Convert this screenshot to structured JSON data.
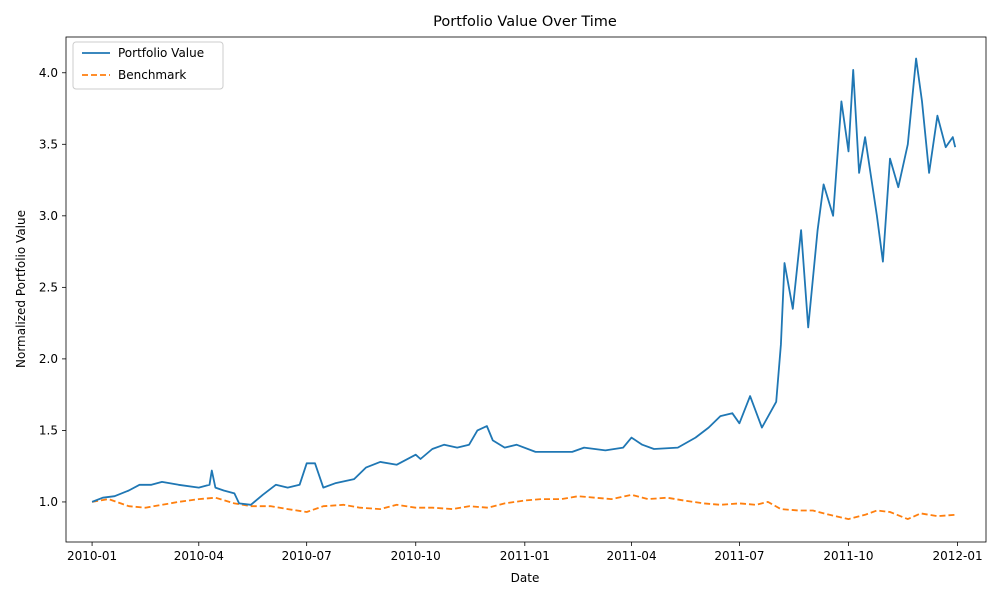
{
  "chart_data": {
    "type": "line",
    "title": "Portfolio Value Over Time",
    "xlabel": "Date",
    "ylabel": "Normalized Portfolio Value",
    "xlim": [
      "2009-12-10",
      "2012-01-25"
    ],
    "ylim": [
      0.72,
      4.25
    ],
    "x_ticks": [
      "2010-01-01",
      "2010-04-01",
      "2010-07-01",
      "2010-10-01",
      "2011-01-01",
      "2011-04-01",
      "2011-07-01",
      "2011-10-01",
      "2012-01-01"
    ],
    "x_tick_labels": [
      "2010-01",
      "2010-04",
      "2010-07",
      "2010-10",
      "2011-01",
      "2011-04",
      "2011-07",
      "2011-10",
      "2012-01"
    ],
    "y_ticks": [
      1.0,
      1.5,
      2.0,
      2.5,
      3.0,
      3.5,
      4.0
    ],
    "y_tick_labels": [
      "1.0",
      "1.5",
      "2.0",
      "2.5",
      "3.0",
      "3.5",
      "4.0"
    ],
    "grid": false,
    "legend": "upper left",
    "series": [
      {
        "name": "Portfolio Value",
        "color": "#1f77b4",
        "style": "solid",
        "points": [
          [
            "2010-01-01",
            1.0
          ],
          [
            "2010-01-10",
            1.03
          ],
          [
            "2010-01-20",
            1.04
          ],
          [
            "2010-02-01",
            1.08
          ],
          [
            "2010-02-10",
            1.12
          ],
          [
            "2010-02-20",
            1.12
          ],
          [
            "2010-03-01",
            1.14
          ],
          [
            "2010-03-15",
            1.12
          ],
          [
            "2010-04-01",
            1.1
          ],
          [
            "2010-04-10",
            1.12
          ],
          [
            "2010-04-12",
            1.22
          ],
          [
            "2010-04-15",
            1.1
          ],
          [
            "2010-04-22",
            1.08
          ],
          [
            "2010-05-01",
            1.06
          ],
          [
            "2010-05-05",
            0.99
          ],
          [
            "2010-05-15",
            0.98
          ],
          [
            "2010-05-25",
            1.05
          ],
          [
            "2010-06-05",
            1.12
          ],
          [
            "2010-06-15",
            1.1
          ],
          [
            "2010-06-25",
            1.12
          ],
          [
            "2010-07-01",
            1.27
          ],
          [
            "2010-07-08",
            1.27
          ],
          [
            "2010-07-15",
            1.1
          ],
          [
            "2010-07-25",
            1.13
          ],
          [
            "2010-08-10",
            1.16
          ],
          [
            "2010-08-20",
            1.24
          ],
          [
            "2010-09-01",
            1.28
          ],
          [
            "2010-09-15",
            1.26
          ],
          [
            "2010-10-01",
            1.33
          ],
          [
            "2010-10-05",
            1.3
          ],
          [
            "2010-10-15",
            1.37
          ],
          [
            "2010-10-25",
            1.4
          ],
          [
            "2010-11-05",
            1.38
          ],
          [
            "2010-11-15",
            1.4
          ],
          [
            "2010-11-22",
            1.5
          ],
          [
            "2010-11-30",
            1.53
          ],
          [
            "2010-12-05",
            1.43
          ],
          [
            "2010-12-15",
            1.38
          ],
          [
            "2010-12-25",
            1.4
          ],
          [
            "2011-01-10",
            1.35
          ],
          [
            "2011-01-25",
            1.35
          ],
          [
            "2011-02-10",
            1.35
          ],
          [
            "2011-02-20",
            1.38
          ],
          [
            "2011-03-10",
            1.36
          ],
          [
            "2011-03-25",
            1.38
          ],
          [
            "2011-04-01",
            1.45
          ],
          [
            "2011-04-10",
            1.4
          ],
          [
            "2011-04-20",
            1.37
          ],
          [
            "2011-05-10",
            1.38
          ],
          [
            "2011-05-25",
            1.45
          ],
          [
            "2011-06-05",
            1.52
          ],
          [
            "2011-06-15",
            1.6
          ],
          [
            "2011-06-25",
            1.62
          ],
          [
            "2011-07-01",
            1.55
          ],
          [
            "2011-07-10",
            1.74
          ],
          [
            "2011-07-20",
            1.52
          ],
          [
            "2011-08-01",
            1.7
          ],
          [
            "2011-08-05",
            2.1
          ],
          [
            "2011-08-08",
            2.67
          ],
          [
            "2011-08-15",
            2.35
          ],
          [
            "2011-08-22",
            2.9
          ],
          [
            "2011-08-28",
            2.22
          ],
          [
            "2011-09-05",
            2.9
          ],
          [
            "2011-09-10",
            3.22
          ],
          [
            "2011-09-18",
            3.0
          ],
          [
            "2011-09-25",
            3.8
          ],
          [
            "2011-10-01",
            3.45
          ],
          [
            "2011-10-05",
            4.02
          ],
          [
            "2011-10-10",
            3.3
          ],
          [
            "2011-10-15",
            3.55
          ],
          [
            "2011-10-25",
            3.0
          ],
          [
            "2011-10-30",
            2.68
          ],
          [
            "2011-11-05",
            3.4
          ],
          [
            "2011-11-12",
            3.2
          ],
          [
            "2011-11-20",
            3.5
          ],
          [
            "2011-11-27",
            4.1
          ],
          [
            "2011-12-02",
            3.8
          ],
          [
            "2011-12-08",
            3.3
          ],
          [
            "2011-12-15",
            3.7
          ],
          [
            "2011-12-22",
            3.48
          ],
          [
            "2011-12-28",
            3.55
          ],
          [
            "2011-12-30",
            3.48
          ]
        ]
      },
      {
        "name": "Benchmark",
        "color": "#ff7f0e",
        "style": "dashed",
        "points": [
          [
            "2010-01-01",
            1.0
          ],
          [
            "2010-01-15",
            1.02
          ],
          [
            "2010-02-01",
            0.97
          ],
          [
            "2010-02-15",
            0.96
          ],
          [
            "2010-03-01",
            0.98
          ],
          [
            "2010-03-15",
            1.0
          ],
          [
            "2010-04-01",
            1.02
          ],
          [
            "2010-04-15",
            1.03
          ],
          [
            "2010-05-01",
            0.99
          ],
          [
            "2010-05-15",
            0.97
          ],
          [
            "2010-06-01",
            0.97
          ],
          [
            "2010-06-15",
            0.95
          ],
          [
            "2010-07-01",
            0.93
          ],
          [
            "2010-07-15",
            0.97
          ],
          [
            "2010-08-01",
            0.98
          ],
          [
            "2010-08-15",
            0.96
          ],
          [
            "2010-09-01",
            0.95
          ],
          [
            "2010-09-15",
            0.98
          ],
          [
            "2010-10-01",
            0.96
          ],
          [
            "2010-10-15",
            0.96
          ],
          [
            "2010-11-01",
            0.95
          ],
          [
            "2010-11-15",
            0.97
          ],
          [
            "2010-12-01",
            0.96
          ],
          [
            "2010-12-15",
            0.99
          ],
          [
            "2011-01-01",
            1.01
          ],
          [
            "2011-01-15",
            1.02
          ],
          [
            "2011-02-01",
            1.02
          ],
          [
            "2011-02-15",
            1.04
          ],
          [
            "2011-03-01",
            1.03
          ],
          [
            "2011-03-15",
            1.02
          ],
          [
            "2011-04-01",
            1.05
          ],
          [
            "2011-04-15",
            1.02
          ],
          [
            "2011-05-01",
            1.03
          ],
          [
            "2011-05-15",
            1.01
          ],
          [
            "2011-06-01",
            0.99
          ],
          [
            "2011-06-15",
            0.98
          ],
          [
            "2011-07-01",
            0.99
          ],
          [
            "2011-07-15",
            0.98
          ],
          [
            "2011-07-25",
            1.0
          ],
          [
            "2011-08-05",
            0.95
          ],
          [
            "2011-08-20",
            0.94
          ],
          [
            "2011-09-01",
            0.94
          ],
          [
            "2011-09-15",
            0.91
          ],
          [
            "2011-10-01",
            0.88
          ],
          [
            "2011-10-15",
            0.91
          ],
          [
            "2011-10-25",
            0.94
          ],
          [
            "2011-11-05",
            0.93
          ],
          [
            "2011-11-20",
            0.88
          ],
          [
            "2011-12-01",
            0.92
          ],
          [
            "2011-12-15",
            0.9
          ],
          [
            "2011-12-30",
            0.91
          ]
        ]
      }
    ]
  }
}
